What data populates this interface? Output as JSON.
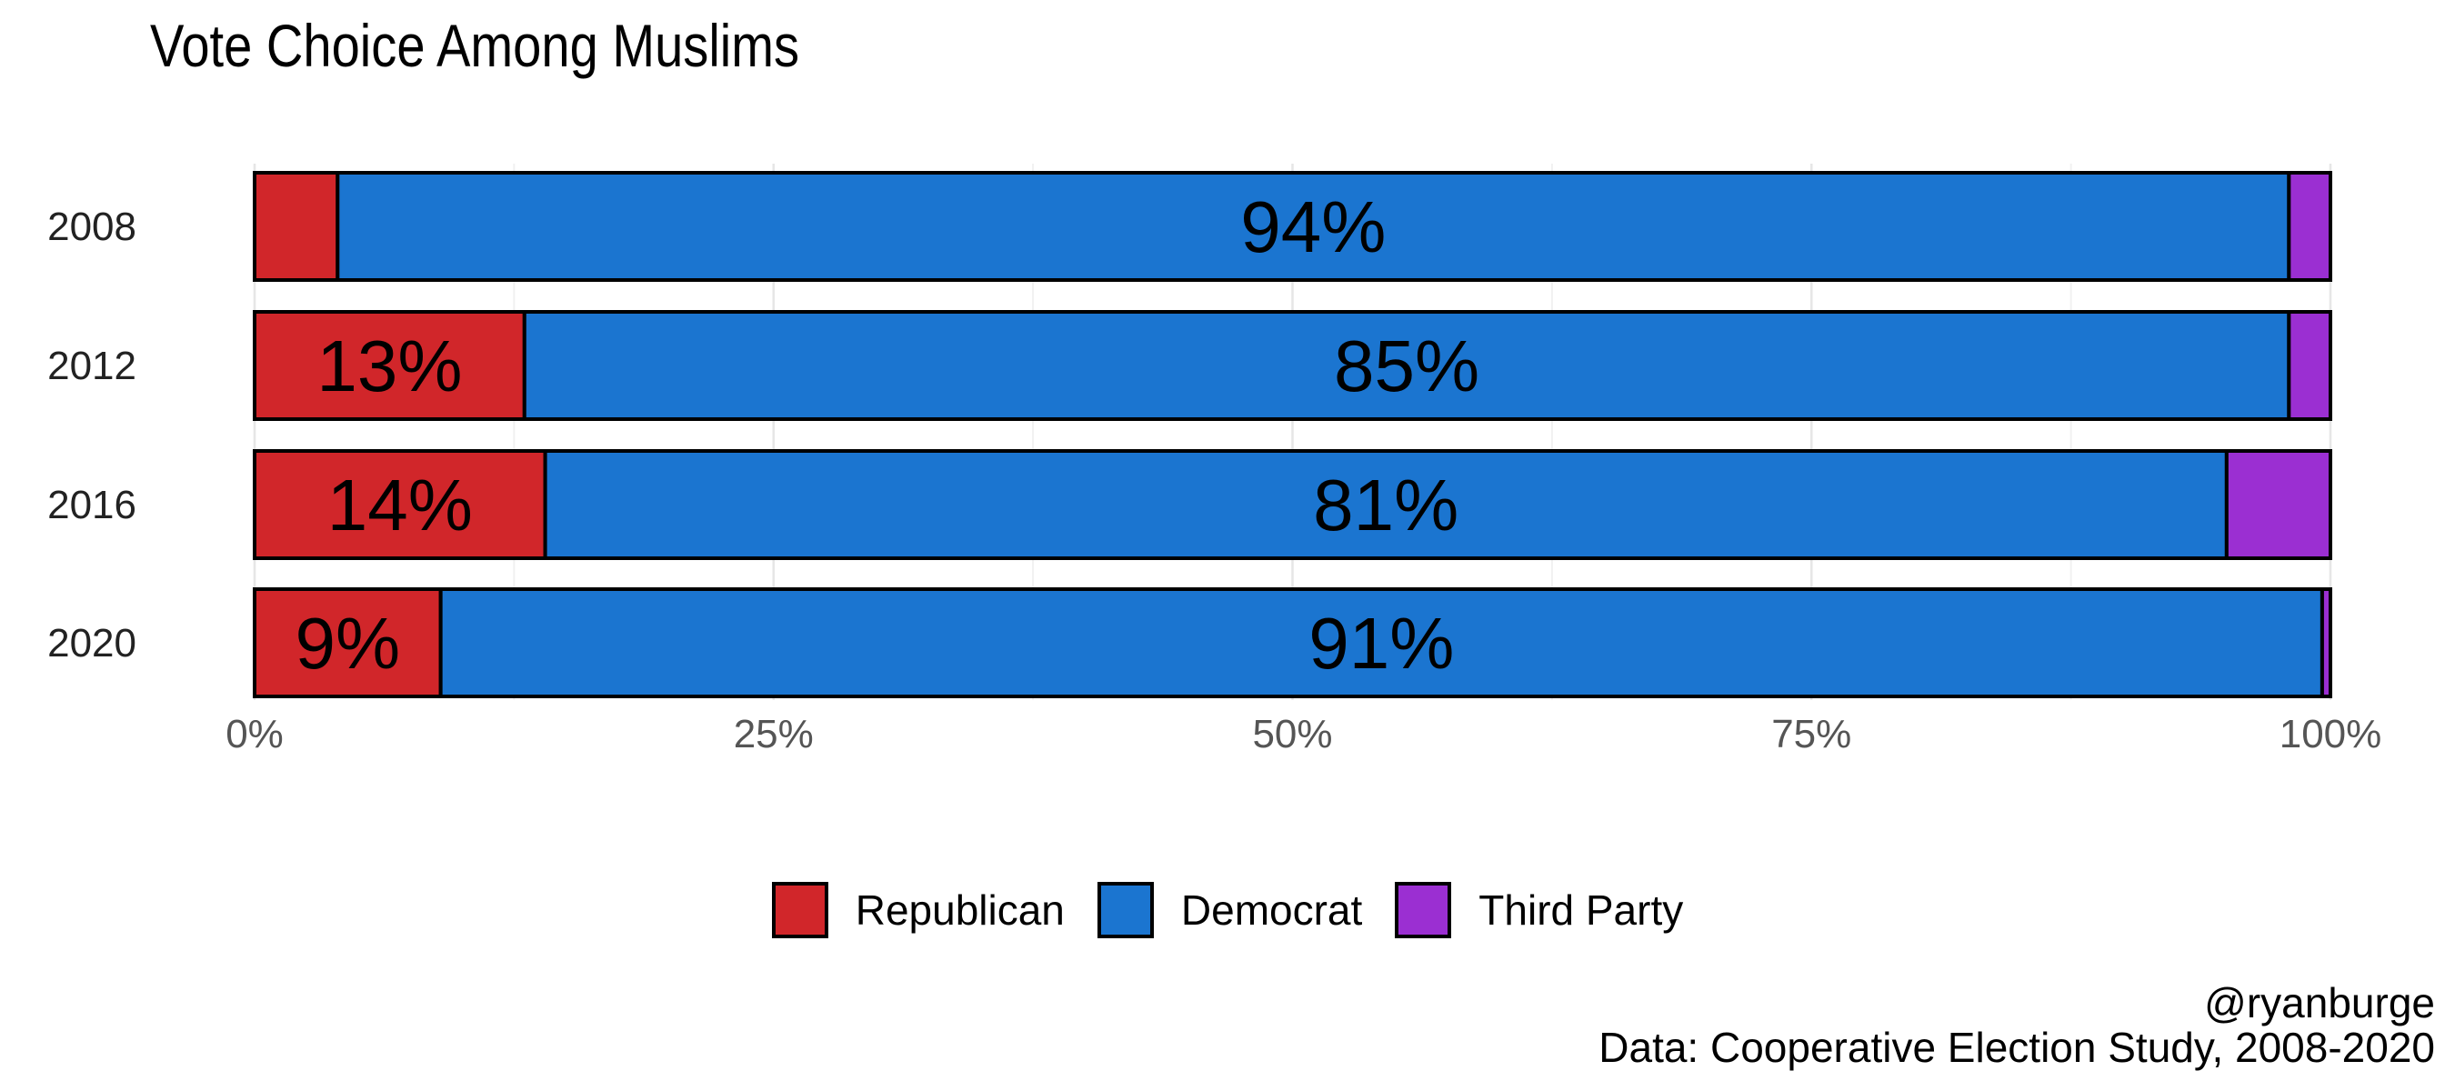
{
  "chart_data": {
    "type": "bar",
    "orientation": "horizontal",
    "stacked": true,
    "title": "Vote Choice Among Muslims",
    "categories": [
      "2008",
      "2012",
      "2016",
      "2020"
    ],
    "series": [
      {
        "name": "Republican",
        "color": "#D1262A",
        "values": [
          0.04,
          0.13,
          0.14,
          0.09
        ],
        "labels": [
          "",
          "13%",
          "14%",
          "9%"
        ]
      },
      {
        "name": "Democrat",
        "color": "#1B75D0",
        "values": [
          0.94,
          0.85,
          0.81,
          0.91
        ],
        "labels": [
          "94%",
          "85%",
          "81%",
          "91%"
        ]
      },
      {
        "name": "Third Party",
        "color": "#9B2FD2",
        "values": [
          0.02,
          0.02,
          0.05,
          0.004
        ],
        "labels": [
          "",
          "",
          "",
          ""
        ]
      }
    ],
    "x_ticks": [
      0,
      0.25,
      0.5,
      0.75,
      1.0
    ],
    "x_tick_labels": [
      "0%",
      "25%",
      "50%",
      "75%",
      "100%"
    ],
    "xlim": [
      0,
      1
    ],
    "xlabel": "",
    "ylabel": "",
    "grid": true,
    "legend_position": "bottom"
  },
  "caption": {
    "handle": "@ryanburge",
    "source": "Data: Cooperative Election Study, 2008-2020"
  }
}
